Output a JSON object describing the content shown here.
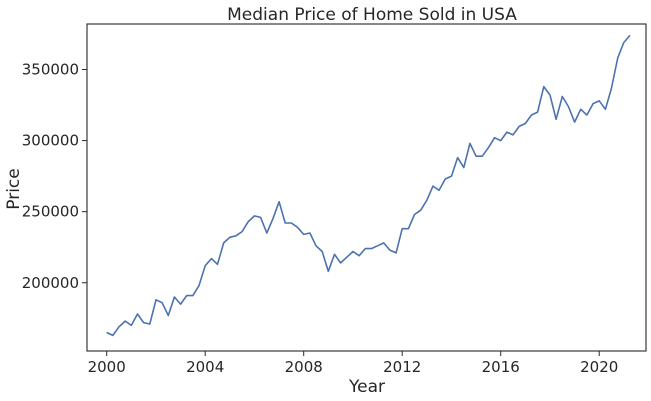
{
  "chart_data": {
    "type": "line",
    "title": "Median Price of Home Sold in USA",
    "xlabel": "Year",
    "ylabel": "Price",
    "xlim": [
      1999.2,
      2021.9
    ],
    "ylim": [
      152000,
      382000
    ],
    "xticks": [
      2000,
      2004,
      2008,
      2012,
      2016,
      2020
    ],
    "yticks": [
      200000,
      250000,
      300000,
      350000
    ],
    "grid": false,
    "legend": "none",
    "series": [
      {
        "color": "#4c72b0",
        "x": [
          2000.0,
          2000.25,
          2000.5,
          2000.75,
          2001.0,
          2001.25,
          2001.5,
          2001.75,
          2002.0,
          2002.25,
          2002.5,
          2002.75,
          2003.0,
          2003.25,
          2003.5,
          2003.75,
          2004.0,
          2004.25,
          2004.5,
          2004.75,
          2005.0,
          2005.25,
          2005.5,
          2005.75,
          2006.0,
          2006.25,
          2006.5,
          2006.75,
          2007.0,
          2007.25,
          2007.5,
          2007.75,
          2008.0,
          2008.25,
          2008.5,
          2008.75,
          2009.0,
          2009.25,
          2009.5,
          2009.75,
          2010.0,
          2010.25,
          2010.5,
          2010.75,
          2011.0,
          2011.25,
          2011.5,
          2011.75,
          2012.0,
          2012.25,
          2012.5,
          2012.75,
          2013.0,
          2013.25,
          2013.5,
          2013.75,
          2014.0,
          2014.25,
          2014.5,
          2014.75,
          2015.0,
          2015.25,
          2015.5,
          2015.75,
          2016.0,
          2016.25,
          2016.5,
          2016.75,
          2017.0,
          2017.25,
          2017.5,
          2017.75,
          2018.0,
          2018.25,
          2018.5,
          2018.75,
          2019.0,
          2019.25,
          2019.5,
          2019.75,
          2020.0,
          2020.25,
          2020.5,
          2020.75,
          2021.0,
          2021.25
        ],
        "y": [
          165000,
          163000,
          169000,
          173000,
          170000,
          178000,
          172000,
          171000,
          188000,
          186000,
          177000,
          190000,
          185000,
          191000,
          191000,
          198000,
          212000,
          217000,
          213000,
          228000,
          232000,
          233000,
          236000,
          243000,
          247000,
          246000,
          235000,
          245000,
          257000,
          242000,
          242000,
          239000,
          234000,
          235000,
          226000,
          222000,
          208000,
          220000,
          214000,
          218000,
          222000,
          219000,
          224000,
          224000,
          226000,
          228000,
          223000,
          221000,
          238000,
          238000,
          248000,
          251000,
          258000,
          268000,
          265000,
          273000,
          275000,
          288000,
          281000,
          298000,
          289000,
          289000,
          295000,
          302000,
          300000,
          306000,
          304000,
          310000,
          312000,
          318000,
          320000,
          338000,
          332000,
          315000,
          331000,
          324000,
          313000,
          322000,
          318000,
          326000,
          328000,
          322000,
          337000,
          358000,
          369000,
          374000
        ]
      }
    ]
  }
}
